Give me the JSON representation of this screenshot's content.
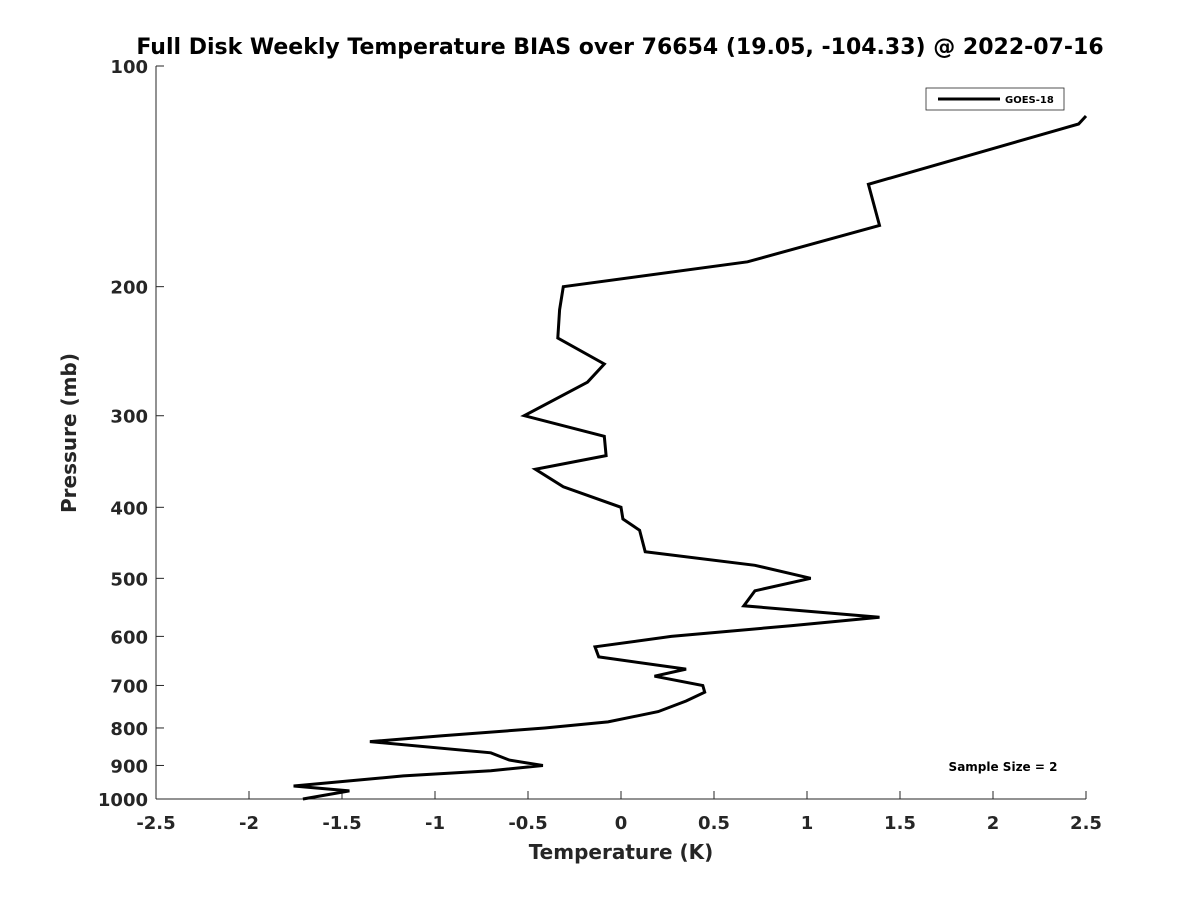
{
  "chart_data": {
    "type": "line",
    "title": "Full Disk Weekly Temperature BIAS over 76654 (19.05, -104.33) @ 2022-07-16",
    "xlabel": "Temperature (K)",
    "ylabel": "Pressure (mb)",
    "xlim": [
      -2.5,
      2.5
    ],
    "ylim": [
      100,
      1000
    ],
    "y_scale": "log",
    "y_reversed": true,
    "x_ticks": [
      -2.5,
      -2,
      -1.5,
      -1,
      -0.5,
      0,
      0.5,
      1,
      1.5,
      2,
      2.5
    ],
    "x_tick_labels": [
      "-2.5",
      "-2",
      "-1.5",
      "-1",
      "-0.5",
      "0",
      "0.5",
      "1",
      "1.5",
      "2",
      "2.5"
    ],
    "y_ticks": [
      100,
      200,
      300,
      400,
      500,
      600,
      700,
      800,
      900,
      1000
    ],
    "y_tick_labels": [
      "100",
      "200",
      "300",
      "400",
      "500",
      "600",
      "700",
      "800",
      "900",
      "1000"
    ],
    "grid": false,
    "legend_position": "top-right",
    "annotation": "Sample Size = 2",
    "series": [
      {
        "name": "GOES-18",
        "color": "#000000",
        "points": [
          {
            "x": 2.5,
            "y": 117
          },
          {
            "x": 2.46,
            "y": 120
          },
          {
            "x": 1.33,
            "y": 145
          },
          {
            "x": 1.39,
            "y": 165
          },
          {
            "x": 0.68,
            "y": 185
          },
          {
            "x": -0.31,
            "y": 200
          },
          {
            "x": -0.33,
            "y": 215
          },
          {
            "x": -0.34,
            "y": 235
          },
          {
            "x": -0.09,
            "y": 255
          },
          {
            "x": -0.18,
            "y": 270
          },
          {
            "x": -0.52,
            "y": 300
          },
          {
            "x": -0.09,
            "y": 320
          },
          {
            "x": -0.08,
            "y": 340
          },
          {
            "x": -0.46,
            "y": 355
          },
          {
            "x": -0.31,
            "y": 375
          },
          {
            "x": 0.0,
            "y": 400
          },
          {
            "x": 0.01,
            "y": 415
          },
          {
            "x": 0.1,
            "y": 430
          },
          {
            "x": 0.13,
            "y": 460
          },
          {
            "x": 0.72,
            "y": 480
          },
          {
            "x": 1.02,
            "y": 500
          },
          {
            "x": 0.72,
            "y": 520
          },
          {
            "x": 0.66,
            "y": 545
          },
          {
            "x": 1.39,
            "y": 565
          },
          {
            "x": 0.92,
            "y": 580
          },
          {
            "x": 0.27,
            "y": 600
          },
          {
            "x": -0.14,
            "y": 620
          },
          {
            "x": -0.12,
            "y": 640
          },
          {
            "x": 0.35,
            "y": 665
          },
          {
            "x": 0.18,
            "y": 680
          },
          {
            "x": 0.44,
            "y": 700
          },
          {
            "x": 0.45,
            "y": 715
          },
          {
            "x": 0.35,
            "y": 735
          },
          {
            "x": 0.2,
            "y": 760
          },
          {
            "x": -0.07,
            "y": 785
          },
          {
            "x": -0.41,
            "y": 800
          },
          {
            "x": -0.96,
            "y": 820
          },
          {
            "x": -1.35,
            "y": 835
          },
          {
            "x": -0.7,
            "y": 865
          },
          {
            "x": -0.6,
            "y": 885
          },
          {
            "x": -0.42,
            "y": 900
          },
          {
            "x": -0.7,
            "y": 915
          },
          {
            "x": -1.17,
            "y": 930
          },
          {
            "x": -1.76,
            "y": 960
          },
          {
            "x": -1.46,
            "y": 975
          },
          {
            "x": -1.71,
            "y": 1000
          }
        ]
      }
    ]
  }
}
